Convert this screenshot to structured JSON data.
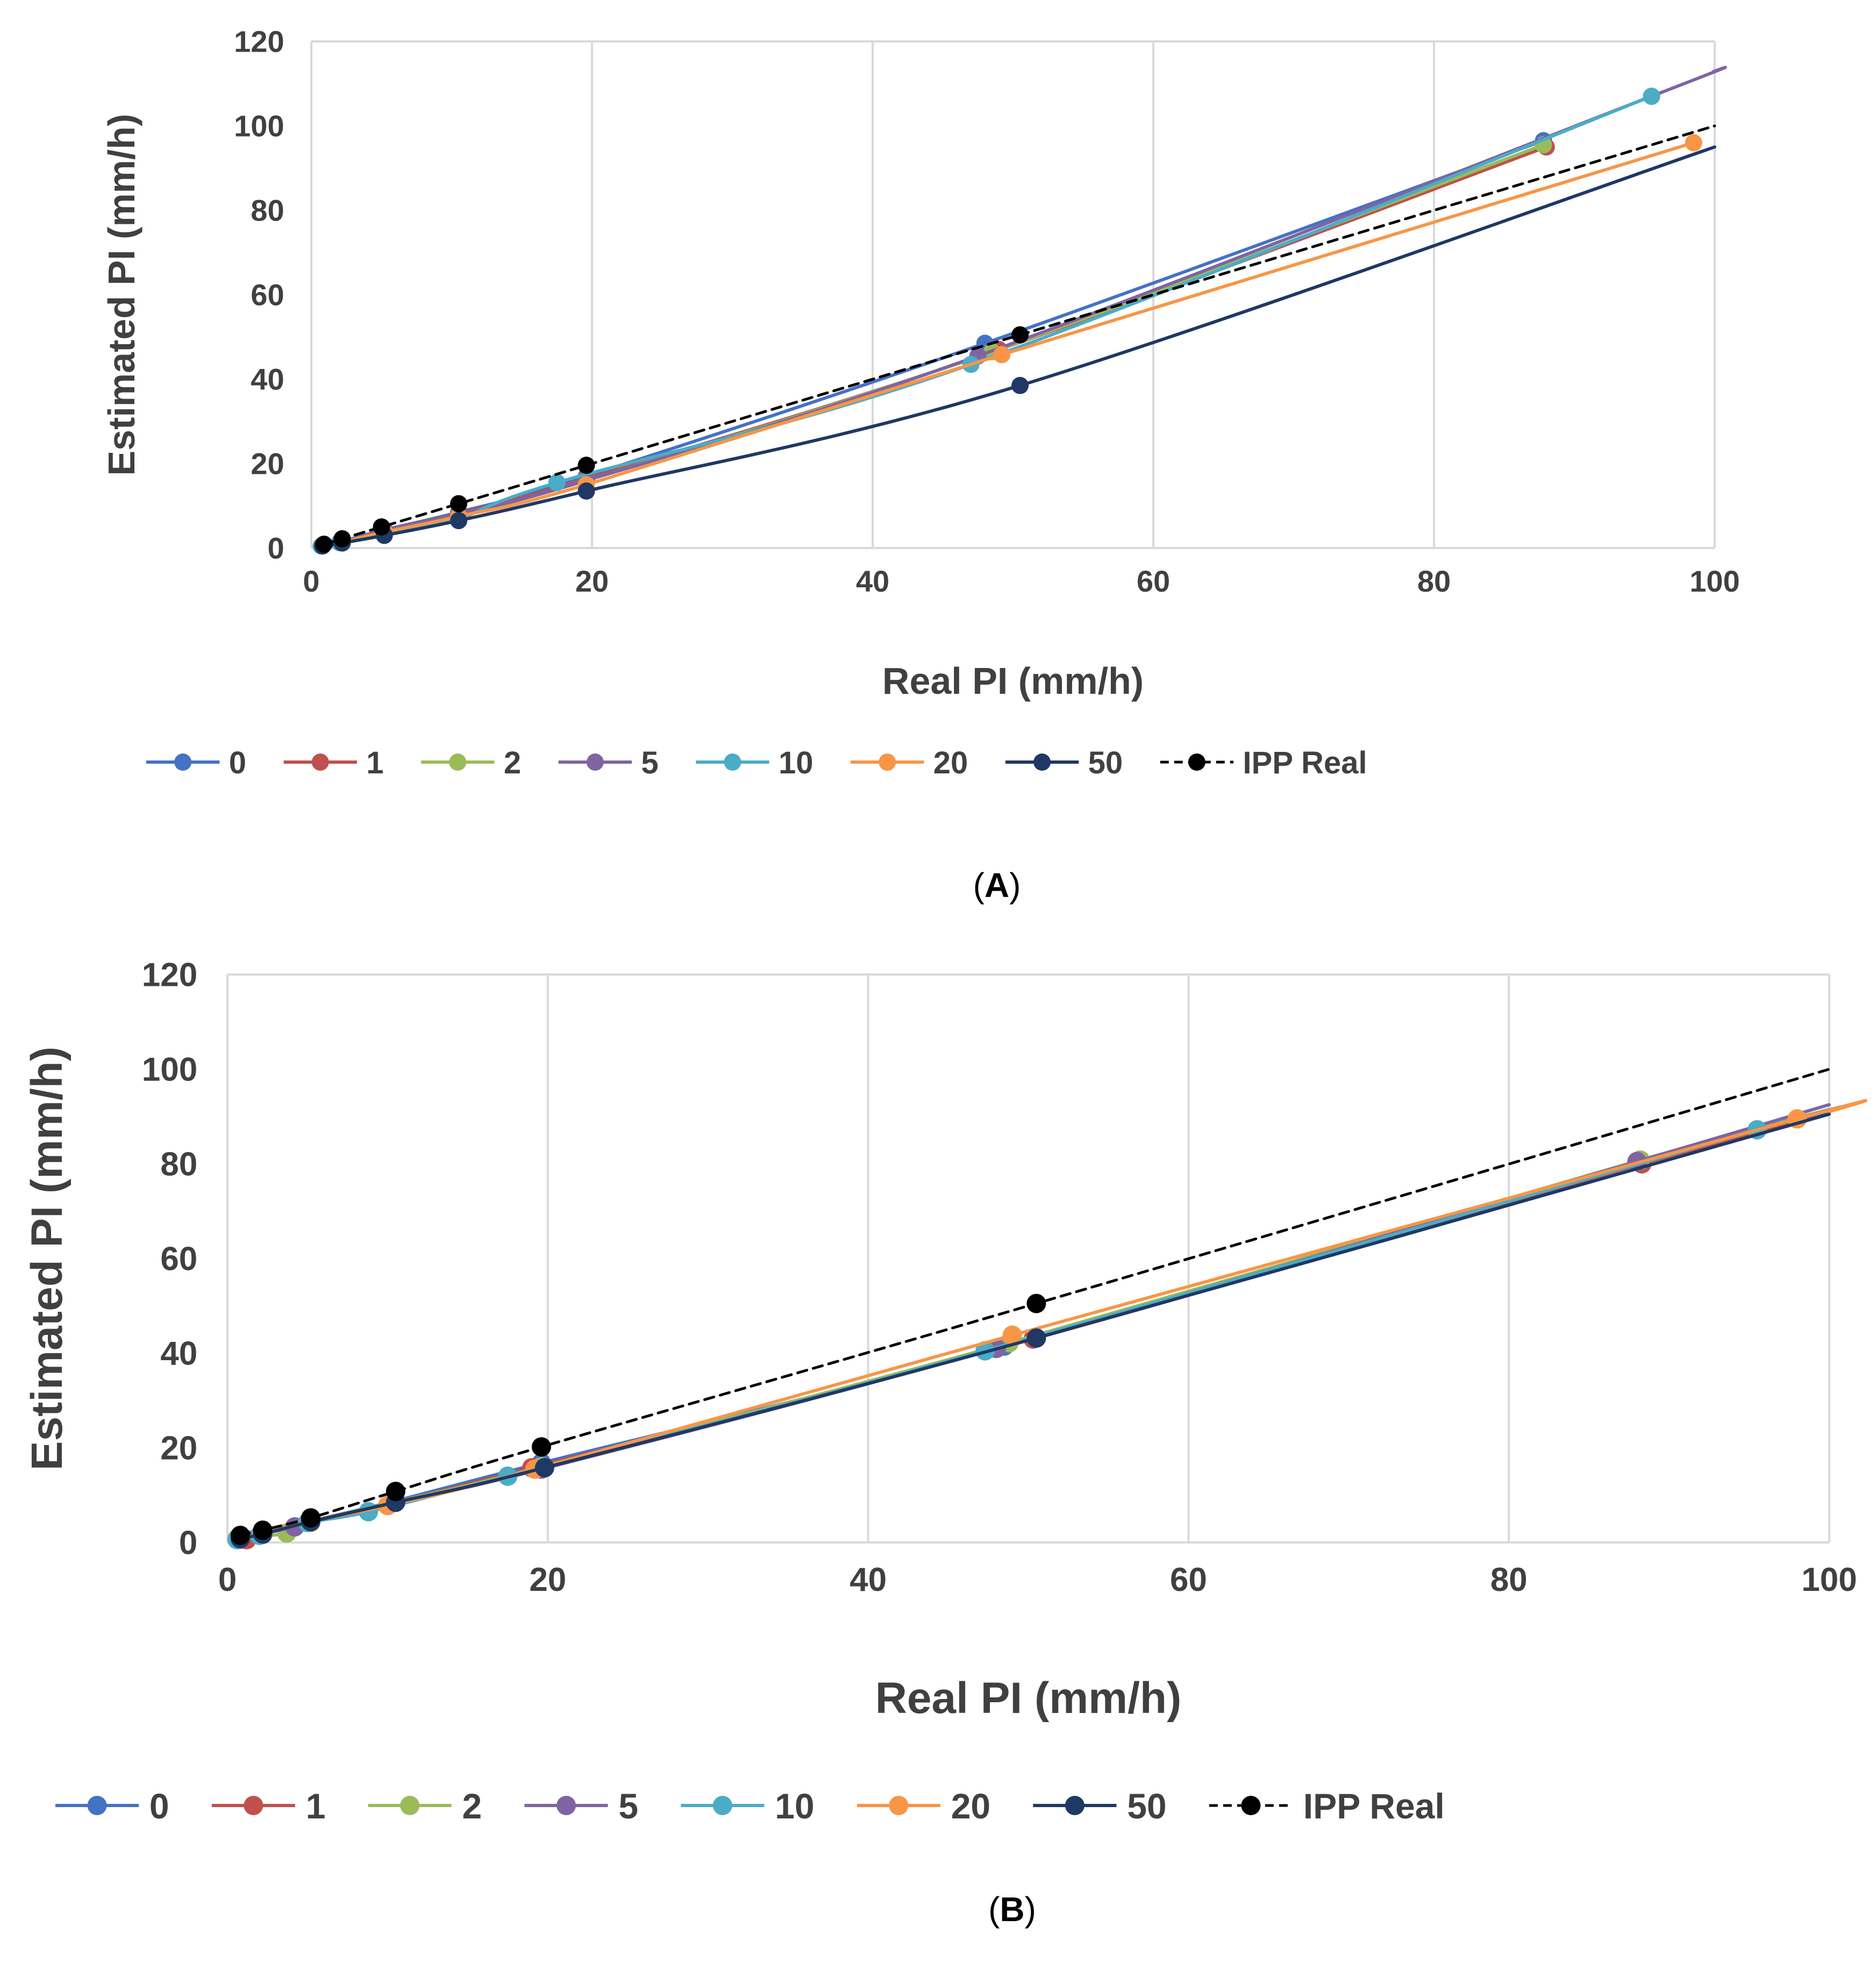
{
  "colors": {
    "s0": "#4472C4",
    "s1": "#C0504D",
    "s2": "#9BBB59",
    "s5": "#8064A2",
    "s10": "#4BACC6",
    "s20": "#F79646",
    "s50": "#1F3864",
    "real": "#000000",
    "grid": "#D9D9D9",
    "text": "#404040"
  },
  "chart_data": [
    {
      "type": "line",
      "panel_label": "(A)",
      "panel_letter": "A",
      "xlabel": "Real PI  (mm/h)",
      "ylabel": "Estimated PI (mm/h)",
      "xlim": [
        0,
        100
      ],
      "ylim": [
        0,
        120
      ],
      "xticks": [
        0,
        20,
        40,
        60,
        80,
        100
      ],
      "yticks": [
        0,
        20,
        40,
        60,
        80,
        100,
        120
      ],
      "grid": "vertical",
      "legend_position": "bottom",
      "series": [
        {
          "name": "0",
          "color_key": "s0",
          "dashed": false,
          "points": [
            [
              0.8,
              0.7
            ],
            [
              2.2,
              1.6
            ],
            [
              5.2,
              4.3
            ],
            [
              10.5,
              8.5
            ],
            [
              19.6,
              17.0
            ],
            [
              48.0,
              48.5
            ],
            [
              87.8,
              96.5
            ]
          ]
        },
        {
          "name": "1",
          "color_key": "s1",
          "dashed": false,
          "points": [
            [
              0.8,
              0.6
            ],
            [
              2.2,
              1.5
            ],
            [
              5.2,
              4.1
            ],
            [
              10.5,
              8.2
            ],
            [
              19.6,
              16.4
            ],
            [
              49.0,
              47.0
            ],
            [
              88.0,
              95.0
            ]
          ]
        },
        {
          "name": "2",
          "color_key": "s2",
          "dashed": false,
          "points": [
            [
              0.8,
              0.6
            ],
            [
              2.2,
              1.5
            ],
            [
              5.2,
              4.0
            ],
            [
              10.5,
              8.0
            ],
            [
              19.6,
              16.0
            ],
            [
              48.5,
              46.5
            ],
            [
              87.8,
              95.5
            ]
          ]
        },
        {
          "name": "5",
          "color_key": "s5",
          "dashed": false,
          "points": [
            [
              0.8,
              0.6
            ],
            [
              2.2,
              1.5
            ],
            [
              5.2,
              4.0
            ],
            [
              10.5,
              8.0
            ],
            [
              19.6,
              16.0
            ],
            [
              47.5,
              45.5
            ],
            [
              95.5,
              107.0
            ],
            [
              100,
              113.0
            ]
          ]
        },
        {
          "name": "10",
          "color_key": "s10",
          "dashed": false,
          "points": [
            [
              0.7,
              0.5
            ],
            [
              2.0,
              1.3
            ],
            [
              5.2,
              3.5
            ],
            [
              10.5,
              7.0
            ],
            [
              17.5,
              15.5
            ],
            [
              47.0,
              43.5
            ],
            [
              95.5,
              107.0
            ]
          ]
        },
        {
          "name": "20",
          "color_key": "s20",
          "dashed": false,
          "points": [
            [
              0.8,
              0.6
            ],
            [
              2.2,
              1.4
            ],
            [
              5.2,
              3.8
            ],
            [
              10.5,
              7.5
            ],
            [
              19.6,
              15.0
            ],
            [
              49.2,
              45.8
            ],
            [
              98.5,
              96.0
            ]
          ]
        },
        {
          "name": "50",
          "color_key": "s50",
          "dashed": false,
          "points": [
            [
              0.8,
              0.5
            ],
            [
              2.2,
              1.2
            ],
            [
              5.2,
              3.0
            ],
            [
              10.5,
              6.5
            ],
            [
              19.6,
              13.5
            ],
            [
              50.5,
              38.5
            ],
            [
              100,
              95.0
            ]
          ]
        },
        {
          "name": "IPP Real",
          "color_key": "real",
          "dashed": true,
          "points": [
            [
              0.9,
              0.9
            ],
            [
              2.2,
              2.2
            ],
            [
              5.0,
              5.0
            ],
            [
              10.5,
              10.5
            ],
            [
              19.6,
              19.6
            ],
            [
              50.5,
              50.5
            ],
            [
              100,
              100
            ]
          ],
          "markers": [
            [
              0.9,
              0.9
            ],
            [
              2.2,
              2.2
            ],
            [
              5.0,
              5.0
            ],
            [
              10.5,
              10.5
            ],
            [
              19.6,
              19.6
            ],
            [
              50.5,
              50.5
            ]
          ]
        }
      ]
    },
    {
      "type": "line",
      "panel_label": "(B)",
      "panel_letter": "B",
      "xlabel": "Real PI (mm/h)",
      "ylabel": "Estimated PI (mm/h)",
      "xlim": [
        0,
        100
      ],
      "ylim": [
        0,
        120
      ],
      "xticks": [
        0,
        20,
        40,
        60,
        80,
        100
      ],
      "yticks": [
        0,
        20,
        40,
        60,
        80,
        100,
        120
      ],
      "grid": "vertical",
      "legend_position": "bottom",
      "series": [
        {
          "name": "0",
          "color_key": "s0",
          "dashed": false,
          "points": [
            [
              0.8,
              0.7
            ],
            [
              2.2,
              1.8
            ],
            [
              5.2,
              4.5
            ],
            [
              10.5,
              8.8
            ],
            [
              19.6,
              16.8
            ],
            [
              48.5,
              41.5
            ],
            [
              88.0,
              80.5
            ],
            [
              100,
              91.0
            ]
          ]
        },
        {
          "name": "1",
          "color_key": "s1",
          "dashed": false,
          "points": [
            [
              1.2,
              0.6
            ],
            [
              2.2,
              1.7
            ],
            [
              5.2,
              4.3
            ],
            [
              10.5,
              8.5
            ],
            [
              19.0,
              15.8
            ],
            [
              50.3,
              43.0
            ],
            [
              88.3,
              80.0
            ],
            [
              100,
              90.5
            ]
          ]
        },
        {
          "name": "2",
          "color_key": "s2",
          "dashed": false,
          "points": [
            [
              0.6,
              0.8
            ],
            [
              3.7,
              2.0
            ],
            [
              5.2,
              4.5
            ],
            [
              10.5,
              8.6
            ],
            [
              19.6,
              16.0
            ],
            [
              48.8,
              42.2
            ],
            [
              88.2,
              80.8
            ],
            [
              100,
              91.5
            ]
          ]
        },
        {
          "name": "5",
          "color_key": "s5",
          "dashed": false,
          "points": [
            [
              0.8,
              0.8
            ],
            [
              4.2,
              3.3
            ],
            [
              5.2,
              4.5
            ],
            [
              10.5,
              8.5
            ],
            [
              19.6,
              15.5
            ],
            [
              48.0,
              41.0
            ],
            [
              88.0,
              80.5
            ],
            [
              100,
              92.5
            ]
          ]
        },
        {
          "name": "10",
          "color_key": "s10",
          "dashed": false,
          "points": [
            [
              0.6,
              0.6
            ],
            [
              2.0,
              1.5
            ],
            [
              5.0,
              4.2
            ],
            [
              8.8,
              6.5
            ],
            [
              17.5,
              14.0
            ],
            [
              47.3,
              40.5
            ],
            [
              95.5,
              87.2
            ],
            [
              100,
              91.0
            ]
          ]
        },
        {
          "name": "20",
          "color_key": "s20",
          "dashed": false,
          "points": [
            [
              0.8,
              0.8
            ],
            [
              2.2,
              1.9
            ],
            [
              5.2,
              4.5
            ],
            [
              10.0,
              7.8
            ],
            [
              19.2,
              15.5
            ],
            [
              49.0,
              43.8
            ],
            [
              98.0,
              89.5
            ],
            [
              100,
              91.0
            ]
          ]
        },
        {
          "name": "50",
          "color_key": "s50",
          "dashed": false,
          "points": [
            [
              0.8,
              0.8
            ],
            [
              2.2,
              1.8
            ],
            [
              5.2,
              4.4
            ],
            [
              10.5,
              8.5
            ],
            [
              19.8,
              15.8
            ],
            [
              50.5,
              43.2
            ],
            [
              100,
              90.5
            ]
          ]
        },
        {
          "name": "IPP Real",
          "color_key": "real",
          "dashed": true,
          "points": [
            [
              0.8,
              1.5
            ],
            [
              2.2,
              2.6
            ],
            [
              5.2,
              5.2
            ],
            [
              10.5,
              10.8
            ],
            [
              19.6,
              20.2
            ],
            [
              50.5,
              50.5
            ],
            [
              100,
              100
            ]
          ],
          "markers": [
            [
              0.8,
              1.5
            ],
            [
              2.2,
              2.6
            ],
            [
              5.2,
              5.2
            ],
            [
              10.5,
              10.8
            ],
            [
              19.6,
              20.2
            ],
            [
              50.5,
              50.5
            ]
          ]
        }
      ]
    }
  ]
}
